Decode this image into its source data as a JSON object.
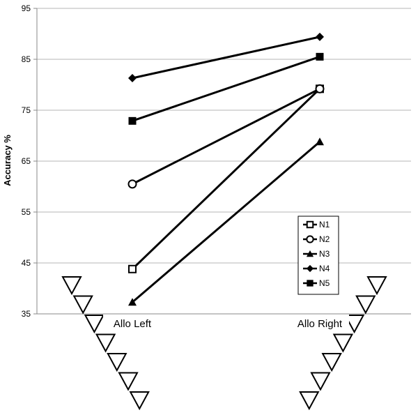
{
  "chart_data": {
    "type": "line",
    "title": "",
    "xlabel": "",
    "ylabel": "Accuracy %",
    "categories": [
      "Allo Left",
      "Allo Right"
    ],
    "ylim": [
      35,
      95
    ],
    "yticks": [
      35,
      45,
      55,
      65,
      75,
      85,
      95
    ],
    "grid": true,
    "legend_position": "right",
    "series": [
      {
        "name": "N1",
        "marker": "open-square",
        "values": [
          43.8,
          79.2
        ]
      },
      {
        "name": "N2",
        "marker": "open-circle",
        "values": [
          60.5,
          79.2
        ]
      },
      {
        "name": "N3",
        "marker": "filled-triangle",
        "values": [
          37.3,
          68.8
        ]
      },
      {
        "name": "N4",
        "marker": "filled-diamond",
        "values": [
          81.3,
          89.4
        ]
      },
      {
        "name": "N5",
        "marker": "filled-square",
        "values": [
          72.9,
          85.5
        ]
      }
    ]
  },
  "decorations": {
    "left_stack": "triangle stack (7 down-pointing triangles) descending left to right",
    "right_stack": "triangle stack (7 down-pointing triangles) ascending left to right"
  }
}
